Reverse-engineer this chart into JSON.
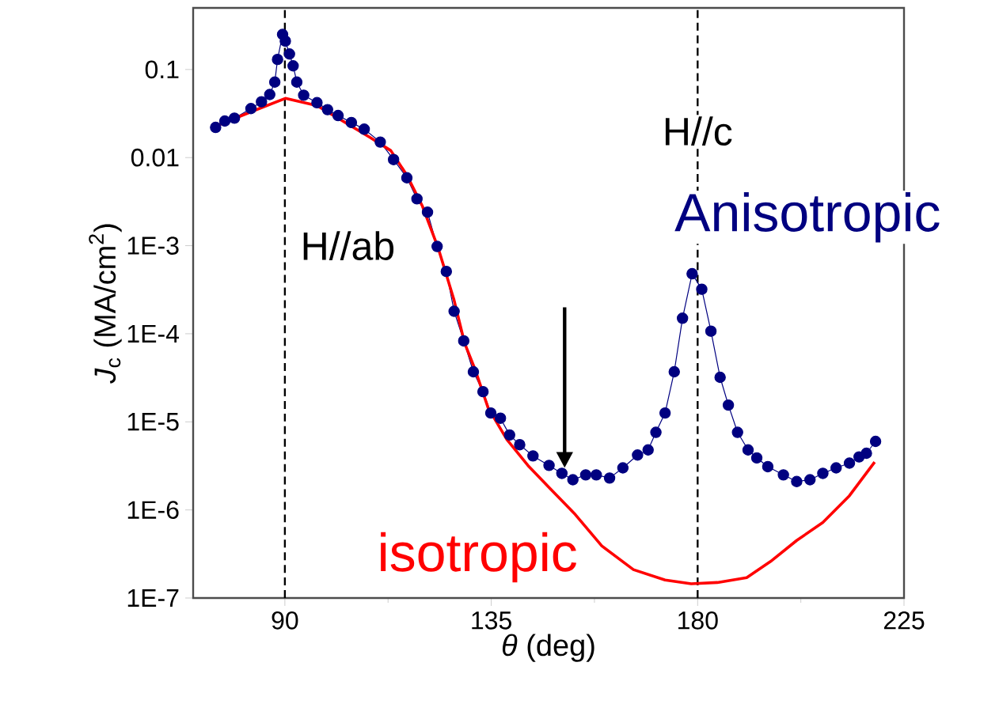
{
  "chart_data": {
    "type": "line",
    "xlabel": "*θ* (deg)",
    "ylabel": "*J*$_{c}$ (MA/cm$^{2}$)",
    "log": "y",
    "marker": "circle",
    "xlim": [
      70,
      225
    ],
    "xticks": [
      90,
      135,
      180,
      225
    ],
    "ylim": [
      1e-07,
      0.5
    ],
    "yticks": [
      {
        "value": 0.1,
        "label": "0.1"
      },
      {
        "value": 0.01,
        "label": "0.01"
      },
      {
        "value": 0.001,
        "label": "1E-3"
      },
      {
        "value": 0.0001,
        "label": "1E-4"
      },
      {
        "value": 1e-05,
        "label": "1E-5"
      },
      {
        "value": 1e-06,
        "label": "1E-6"
      },
      {
        "value": 1e-07,
        "label": "1E-7"
      }
    ],
    "ref_lines": [
      {
        "axis": "x",
        "value": 90,
        "label": "H//ab",
        "color": "#000000",
        "line_style": "dashed"
      },
      {
        "axis": "x",
        "value": 180,
        "label": "H//c",
        "color": "#000000",
        "line_style": "dashed"
      }
    ],
    "series": [
      {
        "name": "Anisotropic",
        "color": "#000080",
        "x": [
          74.9,
          76.9,
          79,
          82.6,
          84.9,
          86.7,
          87.8,
          88.4,
          89.5,
          90.1,
          91,
          91.8,
          92.6,
          94.1,
          97,
          99.3,
          101.6,
          104.5,
          107.3,
          110.8,
          113.7,
          116.6,
          118.8,
          121.1,
          123.2,
          125.2,
          126.9,
          129,
          131.1,
          133.2,
          134.9,
          137,
          139,
          141.2,
          144.1,
          147.6,
          150.4,
          152.8,
          155.6,
          157.9,
          160.8,
          163.7,
          166.9,
          169.2,
          170.9,
          172.9,
          174.9,
          176.7,
          178.8,
          180.9,
          182.9,
          184.9,
          186.7,
          188.7,
          191,
          192.9,
          195.3,
          198.7,
          201.6,
          204.5,
          207.3,
          210.2,
          213.1,
          215.2,
          216.8,
          218.8
        ],
        "values": [
          0.022,
          0.026,
          0.028,
          0.036,
          0.043,
          0.052,
          0.072,
          0.13,
          0.25,
          0.21,
          0.15,
          0.11,
          0.072,
          0.051,
          0.042,
          0.035,
          0.03,
          0.025,
          0.021,
          0.015,
          0.0095,
          0.0059,
          0.0034,
          0.0024,
          0.00098,
          0.00051,
          0.00018,
          8.3e-05,
          3.7e-05,
          2.2e-05,
          1.26e-05,
          1.1e-05,
          7.1e-06,
          5.5e-06,
          4.1e-06,
          3.2e-06,
          2.6e-06,
          2.2e-06,
          2.5e-06,
          2.5e-06,
          2.3e-06,
          3e-06,
          4.2e-06,
          4.8e-06,
          7.6e-06,
          1.26e-05,
          3.7e-05,
          0.00015,
          0.00048,
          0.00032,
          0.000107,
          3.2e-05,
          1.55e-05,
          7.6e-06,
          4.8e-06,
          3.9e-06,
          3.1e-06,
          2.5e-06,
          2.1e-06,
          2.2e-06,
          2.6e-06,
          3e-06,
          3.4e-06,
          4e-06,
          4.4e-06,
          6e-06
        ]
      },
      {
        "name": "isotropic",
        "color": "#ff0000",
        "marker": "none",
        "x": [
          75.2,
          83.2,
          90.1,
          97,
          108.5,
          113.1,
          116.6,
          120,
          123.4,
          126.9,
          129.2,
          131.5,
          134.3,
          138.4,
          143,
          147.6,
          153.3,
          159.1,
          166,
          172.9,
          178.6,
          184.3,
          190.7,
          195.9,
          201.6,
          207.3,
          213.1,
          218.6
        ],
        "values": [
          0.023,
          0.034,
          0.047,
          0.039,
          0.017,
          0.012,
          0.0063,
          0.0028,
          0.00095,
          0.00024,
          7.8e-05,
          3.9e-05,
          1.45e-05,
          6.3e-06,
          3.2e-06,
          1.8e-06,
          8.9e-07,
          3.9e-07,
          2.1e-07,
          1.6e-07,
          1.45e-07,
          1.5e-07,
          1.7e-07,
          2.6e-07,
          4.5e-07,
          7.2e-07,
          1.45e-06,
          3.5e-06
        ]
      }
    ]
  }
}
